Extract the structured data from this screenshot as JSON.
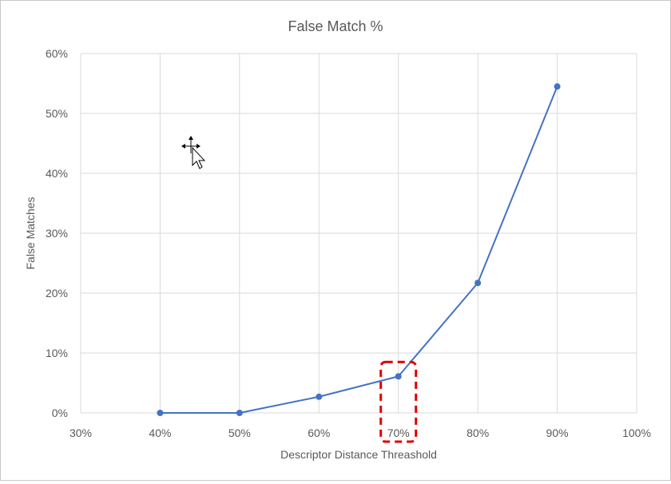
{
  "chart_data": {
    "type": "line",
    "title": "False Match %",
    "xlabel": "Descriptor Distance Threashold",
    "ylabel": "False Matches",
    "x_ticks": [
      "30%",
      "40%",
      "50%",
      "60%",
      "70%",
      "80%",
      "90%",
      "100%"
    ],
    "y_ticks": [
      "0%",
      "10%",
      "20%",
      "30%",
      "40%",
      "50%",
      "60%"
    ],
    "xlim": [
      30,
      100
    ],
    "ylim": [
      0,
      60
    ],
    "x": [
      40,
      50,
      60,
      70,
      80,
      90
    ],
    "series": [
      {
        "values": [
          0,
          0,
          2.7,
          6.1,
          21.7,
          54.5
        ]
      }
    ],
    "grid": true,
    "line_color": "#4472c4",
    "highlight": {
      "x": 70,
      "style": "dashed-box",
      "color": "#e00000"
    }
  }
}
